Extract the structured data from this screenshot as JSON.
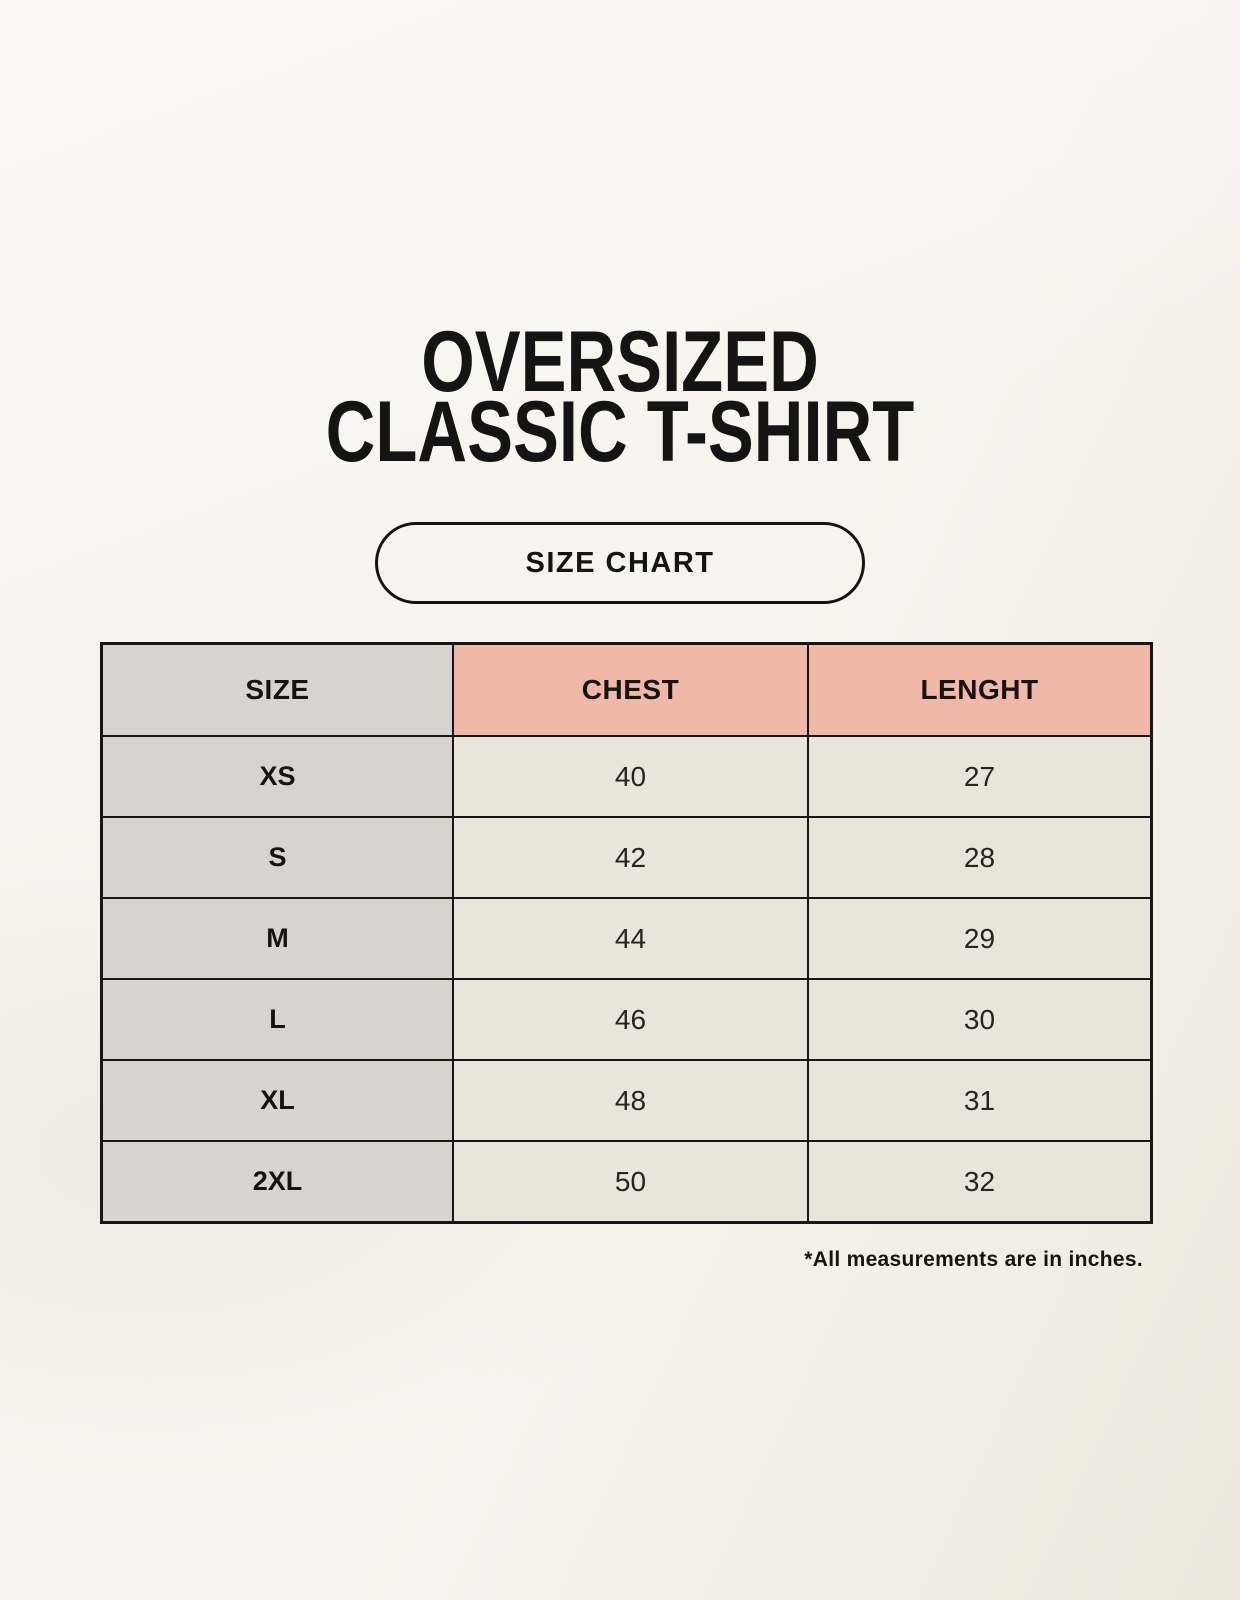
{
  "title": {
    "line1": "OVERSIZED",
    "line2": "CLASSIC T-SHIRT"
  },
  "size_chart_button": {
    "label": "SIZE CHART"
  },
  "table": {
    "columns": [
      "SIZE",
      "CHEST",
      "LENGHT"
    ],
    "rows": [
      {
        "size": "XS",
        "chest": "40",
        "length": "27"
      },
      {
        "size": "S",
        "chest": "42",
        "length": "28"
      },
      {
        "size": "M",
        "chest": "44",
        "length": "29"
      },
      {
        "size": "L",
        "chest": "46",
        "length": "30"
      },
      {
        "size": "XL",
        "chest": "48",
        "length": "31"
      },
      {
        "size": "2XL",
        "chest": "50",
        "length": "32"
      }
    ]
  },
  "footnote": "*All measurements are in inches.",
  "colors": {
    "background": "#f7f4ed",
    "header_pink": "#f0b8a6",
    "column_gray": "#d9d3d0",
    "cell_cream": "#eae4db",
    "border": "#161616",
    "text": "#141414"
  },
  "chart_data": {
    "type": "table",
    "title": "OVERSIZED CLASSIC T-SHIRT — SIZE CHART",
    "columns": [
      "SIZE",
      "CHEST",
      "LENGHT"
    ],
    "units": "inches",
    "categories": [
      "XS",
      "S",
      "M",
      "L",
      "XL",
      "2XL"
    ],
    "series": [
      {
        "name": "CHEST",
        "values": [
          40,
          42,
          44,
          46,
          48,
          50
        ]
      },
      {
        "name": "LENGHT",
        "values": [
          27,
          28,
          29,
          30,
          31,
          32
        ]
      }
    ]
  }
}
